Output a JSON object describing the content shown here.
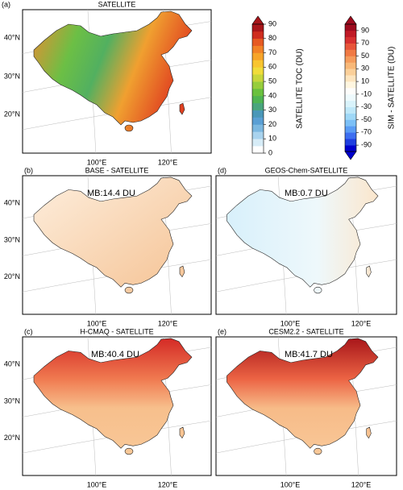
{
  "panels": [
    {
      "letter": "(a)",
      "title": "SATELLITE",
      "lat_labels": [
        "40°N",
        "30°N",
        "20°N"
      ],
      "lon_labels": [
        "100°E",
        "120°E"
      ]
    },
    {
      "letter": "(b)",
      "title": "BASE - SATELLITE",
      "annotation": "MB:14.4 DU",
      "lat_labels": [
        "40°N",
        "30°N",
        "20°N"
      ],
      "lon_labels": [
        "100°E",
        "120°E"
      ]
    },
    {
      "letter": "(d)",
      "title": "GEOS-Chem-SATELLITE",
      "annotation": "MB:0.7 DU",
      "lon_labels": [
        "100°E",
        "120°E"
      ]
    },
    {
      "letter": "(c)",
      "title": "H-CMAQ - SATELLITE",
      "annotation": "MB:40.4 DU",
      "lat_labels": [
        "40°N",
        "30°N",
        "20°N"
      ],
      "lon_labels": [
        "100°E",
        "120°E"
      ]
    },
    {
      "letter": "(e)",
      "title": "CESM2.2 - SATELLITE",
      "annotation": "MB:41.7 DU",
      "lon_labels": [
        "100°E",
        "120°E"
      ]
    }
  ],
  "colorbars": [
    {
      "label": "SATELLITE TOC (DU)",
      "lim": [
        0,
        90
      ],
      "ticks": [
        0,
        10,
        20,
        30,
        40,
        50,
        60,
        70,
        80,
        90
      ],
      "extend": "max",
      "colors": [
        "#ffffff",
        "#d7ecf7",
        "#a9d3ee",
        "#7cb8e0",
        "#5a9fd4",
        "#4a97b8",
        "#49a57d",
        "#4fb453",
        "#6ac13f",
        "#97cd3c",
        "#c7d63b",
        "#f0dc3a",
        "#f8c530",
        "#f7a52a",
        "#f28226",
        "#e65a22",
        "#cf2d1f",
        "#a8161a"
      ]
    },
    {
      "label": "SIM - SATELLITE (DU)",
      "lim": [
        -100,
        100
      ],
      "ticks": [
        -90,
        -70,
        -50,
        -30,
        -10,
        10,
        30,
        50,
        70,
        90
      ],
      "extend": "both",
      "colors": [
        "#0000cc",
        "#1f3fe0",
        "#3d6ef0",
        "#5a9cf5",
        "#7cc0f7",
        "#9fd8f7",
        "#bfe8f9",
        "#d9f3fb",
        "#eefafd",
        "#fdfdfb",
        "#fff6e0",
        "#fde5bf",
        "#fbd09a",
        "#f8b878",
        "#f59c5c",
        "#f07a44",
        "#e8553a",
        "#d73030",
        "#c01a26",
        "#9e0a1e"
      ]
    }
  ]
}
